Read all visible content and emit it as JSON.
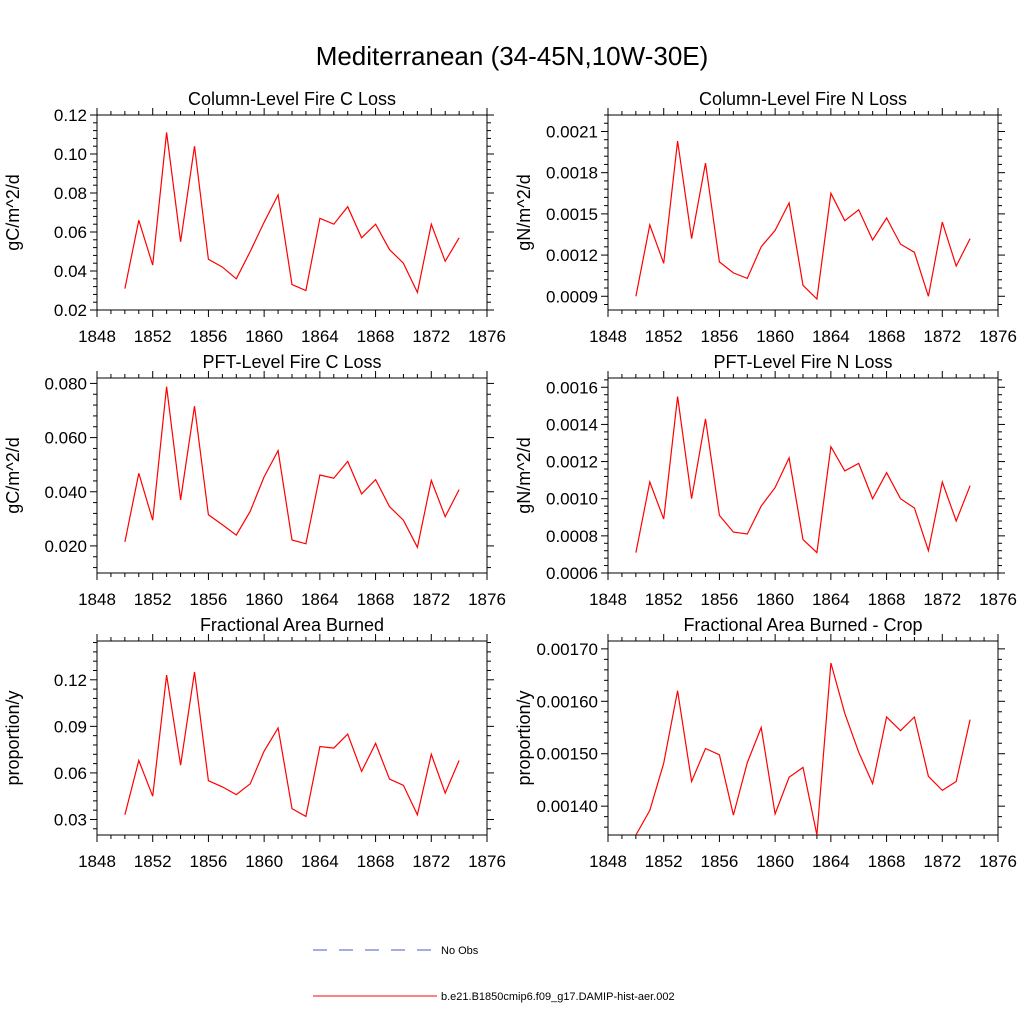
{
  "figure_title": "Mediterranean (34-45N,10W-30E)",
  "chart_data": [
    {
      "type": "line",
      "title": "Column-Level Fire C Loss",
      "xlabel": "",
      "ylabel": "gC/m^2/d",
      "xlim": [
        1848,
        1876
      ],
      "ylim": [
        0.02,
        0.12
      ],
      "xticks": [
        "1848",
        "1852",
        "1856",
        "1860",
        "1864",
        "1868",
        "1872",
        "1876"
      ],
      "yticks": [
        "0.02",
        "0.04",
        "0.06",
        "0.08",
        "0.10",
        "0.12"
      ],
      "x": [
        1850,
        1851,
        1852,
        1853,
        1854,
        1855,
        1856,
        1857,
        1858,
        1859,
        1860,
        1861,
        1862,
        1863,
        1864,
        1865,
        1866,
        1867,
        1868,
        1869,
        1870,
        1871,
        1872,
        1873,
        1874
      ],
      "series": [
        {
          "values": [
            0.031,
            0.066,
            0.043,
            0.111,
            0.055,
            0.104,
            0.046,
            0.042,
            0.036,
            0.05,
            0.065,
            0.079,
            0.033,
            0.03,
            0.067,
            0.064,
            0.073,
            0.057,
            0.064,
            0.051,
            0.044,
            0.029,
            0.064,
            0.045,
            0.057
          ],
          "color": "#ff0000"
        }
      ]
    },
    {
      "type": "line",
      "title": "Column-Level Fire N Loss",
      "xlabel": "",
      "ylabel": "gN/m^2/d",
      "xlim": [
        1848,
        1876
      ],
      "ylim": [
        0.0008,
        0.00222
      ],
      "xticks": [
        "1848",
        "1852",
        "1856",
        "1860",
        "1864",
        "1868",
        "1872",
        "1876"
      ],
      "yticks": [
        "0.0009",
        "0.0012",
        "0.0015",
        "0.0018",
        "0.0021"
      ],
      "x": [
        1850,
        1851,
        1852,
        1853,
        1854,
        1855,
        1856,
        1857,
        1858,
        1859,
        1860,
        1861,
        1862,
        1863,
        1864,
        1865,
        1866,
        1867,
        1868,
        1869,
        1870,
        1871,
        1872,
        1873,
        1874
      ],
      "series": [
        {
          "values": [
            0.0009,
            0.00142,
            0.00114,
            0.00203,
            0.00132,
            0.00187,
            0.00115,
            0.00107,
            0.00103,
            0.00126,
            0.00138,
            0.00158,
            0.00098,
            0.00088,
            0.00165,
            0.00145,
            0.00153,
            0.00131,
            0.00147,
            0.00128,
            0.00122,
            0.0009,
            0.00144,
            0.00112,
            0.00132
          ],
          "color": "#ff0000"
        }
      ]
    },
    {
      "type": "line",
      "title": "PFT-Level Fire C Loss",
      "xlabel": "",
      "ylabel": "gC/m^2/d",
      "xlim": [
        1848,
        1876
      ],
      "ylim": [
        0.01,
        0.082
      ],
      "xticks": [
        "1848",
        "1852",
        "1856",
        "1860",
        "1864",
        "1868",
        "1872",
        "1876"
      ],
      "yticks": [
        "0.020",
        "0.040",
        "0.060",
        "0.080"
      ],
      "x": [
        1850,
        1851,
        1852,
        1853,
        1854,
        1855,
        1856,
        1857,
        1858,
        1859,
        1860,
        1861,
        1862,
        1863,
        1864,
        1865,
        1866,
        1867,
        1868,
        1869,
        1870,
        1871,
        1872,
        1873,
        1874
      ],
      "series": [
        {
          "values": [
            0.0215,
            0.0468,
            0.0295,
            0.0788,
            0.037,
            0.0716,
            0.0315,
            0.0278,
            0.024,
            0.0328,
            0.0455,
            0.0552,
            0.0222,
            0.0208,
            0.0462,
            0.045,
            0.0512,
            0.0392,
            0.0445,
            0.0345,
            0.0295,
            0.0195,
            0.0442,
            0.0308,
            0.0408
          ],
          "color": "#ff0000"
        }
      ]
    },
    {
      "type": "line",
      "title": "PFT-Level Fire N Loss",
      "xlabel": "",
      "ylabel": "gN/m^2/d",
      "xlim": [
        1848,
        1876
      ],
      "ylim": [
        0.0006,
        0.00165
      ],
      "xticks": [
        "1848",
        "1852",
        "1856",
        "1860",
        "1864",
        "1868",
        "1872",
        "1876"
      ],
      "yticks": [
        "0.0006",
        "0.0008",
        "0.0010",
        "0.0012",
        "0.0014",
        "0.0016"
      ],
      "x": [
        1850,
        1851,
        1852,
        1853,
        1854,
        1855,
        1856,
        1857,
        1858,
        1859,
        1860,
        1861,
        1862,
        1863,
        1864,
        1865,
        1866,
        1867,
        1868,
        1869,
        1870,
        1871,
        1872,
        1873,
        1874
      ],
      "series": [
        {
          "values": [
            0.00071,
            0.00109,
            0.00089,
            0.00155,
            0.001,
            0.00143,
            0.00091,
            0.00082,
            0.00081,
            0.00096,
            0.00106,
            0.00122,
            0.00078,
            0.00071,
            0.00128,
            0.00115,
            0.00119,
            0.001,
            0.00114,
            0.001,
            0.00095,
            0.00072,
            0.00109,
            0.00088,
            0.00107
          ],
          "color": "#ff0000"
        }
      ]
    },
    {
      "type": "line",
      "title": "Fractional Area Burned",
      "xlabel": "",
      "ylabel": "proportion/y",
      "xlim": [
        1848,
        1876
      ],
      "ylim": [
        0.02,
        0.145
      ],
      "xticks": [
        "1848",
        "1852",
        "1856",
        "1860",
        "1864",
        "1868",
        "1872",
        "1876"
      ],
      "yticks": [
        "0.03",
        "0.06",
        "0.09",
        "0.12"
      ],
      "x": [
        1850,
        1851,
        1852,
        1853,
        1854,
        1855,
        1856,
        1857,
        1858,
        1859,
        1860,
        1861,
        1862,
        1863,
        1864,
        1865,
        1866,
        1867,
        1868,
        1869,
        1870,
        1871,
        1872,
        1873,
        1874
      ],
      "series": [
        {
          "values": [
            0.033,
            0.068,
            0.045,
            0.123,
            0.065,
            0.125,
            0.055,
            0.051,
            0.046,
            0.053,
            0.074,
            0.089,
            0.037,
            0.032,
            0.077,
            0.076,
            0.085,
            0.061,
            0.079,
            0.056,
            0.052,
            0.033,
            0.072,
            0.047,
            0.068
          ],
          "color": "#ff0000"
        }
      ]
    },
    {
      "type": "line",
      "title": "Fractional Area Burned - Crop",
      "xlabel": "",
      "ylabel": "proportion/y",
      "xlim": [
        1848,
        1876
      ],
      "ylim": [
        0.001345,
        0.001715
      ],
      "xticks": [
        "1848",
        "1852",
        "1856",
        "1860",
        "1864",
        "1868",
        "1872",
        "1876"
      ],
      "yticks": [
        "0.00140",
        "0.00150",
        "0.00160",
        "0.00170"
      ],
      "x": [
        1850,
        1851,
        1852,
        1853,
        1854,
        1855,
        1856,
        1857,
        1858,
        1859,
        1860,
        1861,
        1862,
        1863,
        1864,
        1865,
        1866,
        1867,
        1868,
        1869,
        1870,
        1871,
        1872,
        1873,
        1874
      ],
      "series": [
        {
          "values": [
            0.001345,
            0.001392,
            0.001482,
            0.00162,
            0.001447,
            0.00151,
            0.001498,
            0.001383,
            0.001483,
            0.00155,
            0.001385,
            0.001455,
            0.001474,
            0.001345,
            0.001673,
            0.001577,
            0.001503,
            0.001443,
            0.00157,
            0.001544,
            0.00157,
            0.001457,
            0.00143,
            0.001447,
            0.001565
          ],
          "color": "#ff0000"
        }
      ]
    }
  ],
  "legend": [
    {
      "label": "No Obs",
      "color": "#4a5bc4",
      "style": "dashed"
    },
    {
      "label": "b.e21.B1850cmip6.f09_g17.DAMIP-hist-aer.002",
      "color": "#ff0000",
      "style": "solid"
    }
  ]
}
